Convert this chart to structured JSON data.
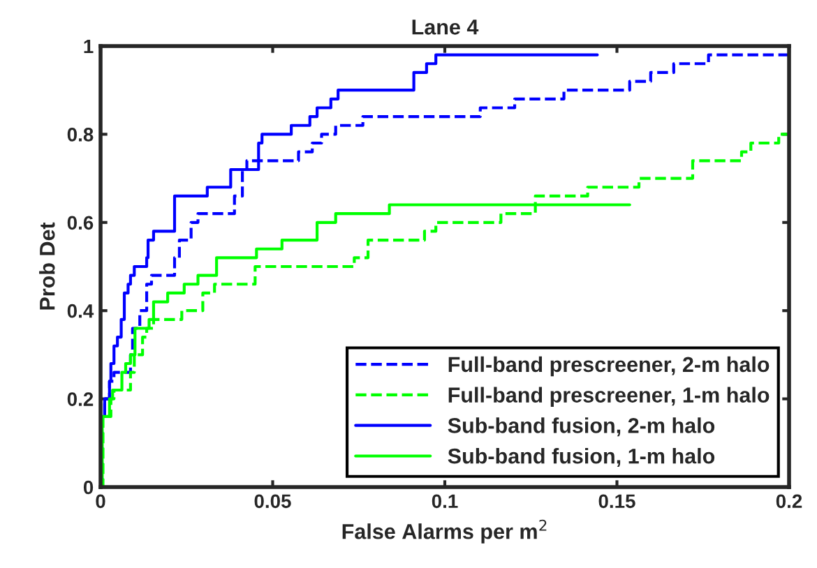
{
  "chart_data": {
    "type": "step",
    "title": "Lane 4",
    "xlabel": "False Alarms per m$^{2}$",
    "ylabel": "Prob Det",
    "xlim": [
      0,
      0.2
    ],
    "ylim": [
      0,
      1
    ],
    "xticks": [
      0,
      0.05,
      0.1,
      0.15,
      0.2
    ],
    "yticks": [
      0,
      0.2,
      0.4,
      0.6,
      0.8,
      1
    ],
    "grid": false,
    "legend": "bottom right",
    "marker": "none",
    "series": [
      {
        "name": "Full-band prescreener, 2-m halo",
        "color": "#0000ff",
        "line_style": "dashed",
        "x": [
          0,
          0.0005,
          0.0012,
          0.0026,
          0.0039,
          0.0087,
          0.0093,
          0.0114,
          0.0134,
          0.0148,
          0.0215,
          0.0229,
          0.0263,
          0.0283,
          0.0389,
          0.0412,
          0.0425,
          0.0575,
          0.0615,
          0.0642,
          0.0683,
          0.0762,
          0.1103,
          0.1203,
          0.1346,
          0.1537,
          0.1598,
          0.1665,
          0.1766,
          0.2
        ],
        "values": [
          0,
          0.16,
          0.2,
          0.24,
          0.26,
          0.3,
          0.36,
          0.4,
          0.46,
          0.48,
          0.52,
          0.56,
          0.6,
          0.62,
          0.66,
          0.72,
          0.74,
          0.76,
          0.78,
          0.8,
          0.82,
          0.84,
          0.86,
          0.88,
          0.9,
          0.92,
          0.94,
          0.96,
          0.98,
          0.98
        ]
      },
      {
        "name": "Full-band prescreener, 1-m halo",
        "color": "#00ff00",
        "line_style": "dashed",
        "x": [
          0,
          0.0007,
          0.003,
          0.0039,
          0.0087,
          0.0098,
          0.0122,
          0.0134,
          0.0154,
          0.0236,
          0.0297,
          0.0331,
          0.0449,
          0.0737,
          0.0777,
          0.0941,
          0.0974,
          0.1163,
          0.1263,
          0.1415,
          0.1564,
          0.172,
          0.1862,
          0.1889,
          0.197,
          0.2
        ],
        "values": [
          0,
          0.16,
          0.2,
          0.22,
          0.26,
          0.3,
          0.34,
          0.36,
          0.38,
          0.4,
          0.44,
          0.46,
          0.5,
          0.52,
          0.56,
          0.58,
          0.6,
          0.62,
          0.66,
          0.68,
          0.7,
          0.74,
          0.76,
          0.78,
          0.8,
          0.8
        ]
      },
      {
        "name": "Sub-band fusion, 2-m halo",
        "color": "#0000ff",
        "line_style": "solid",
        "x": [
          0,
          0.0003,
          0.0012,
          0.0026,
          0.003,
          0.0039,
          0.0049,
          0.006,
          0.0069,
          0.008,
          0.0087,
          0.0098,
          0.0134,
          0.0138,
          0.0154,
          0.0215,
          0.031,
          0.0378,
          0.0459,
          0.0469,
          0.0554,
          0.0608,
          0.0629,
          0.0669,
          0.069,
          0.091,
          0.0947,
          0.0974,
          0.1443
        ],
        "values": [
          0,
          0.16,
          0.2,
          0.24,
          0.28,
          0.32,
          0.34,
          0.38,
          0.44,
          0.46,
          0.48,
          0.5,
          0.52,
          0.56,
          0.58,
          0.66,
          0.68,
          0.72,
          0.78,
          0.8,
          0.82,
          0.84,
          0.86,
          0.88,
          0.9,
          0.94,
          0.96,
          0.98,
          0.98
        ]
      },
      {
        "name": "Sub-band fusion, 1-m halo",
        "color": "#00ff00",
        "line_style": "solid",
        "x": [
          0,
          0.0005,
          0.0026,
          0.0035,
          0.0062,
          0.0073,
          0.0087,
          0.01,
          0.0141,
          0.0154,
          0.0195,
          0.0243,
          0.0283,
          0.0337,
          0.0453,
          0.0527,
          0.0629,
          0.0683,
          0.0839,
          0.0995,
          0.1537
        ],
        "values": [
          0,
          0.16,
          0.2,
          0.22,
          0.26,
          0.28,
          0.3,
          0.36,
          0.38,
          0.42,
          0.44,
          0.46,
          0.48,
          0.52,
          0.54,
          0.56,
          0.6,
          0.62,
          0.64,
          0.64,
          0.64
        ]
      }
    ]
  }
}
